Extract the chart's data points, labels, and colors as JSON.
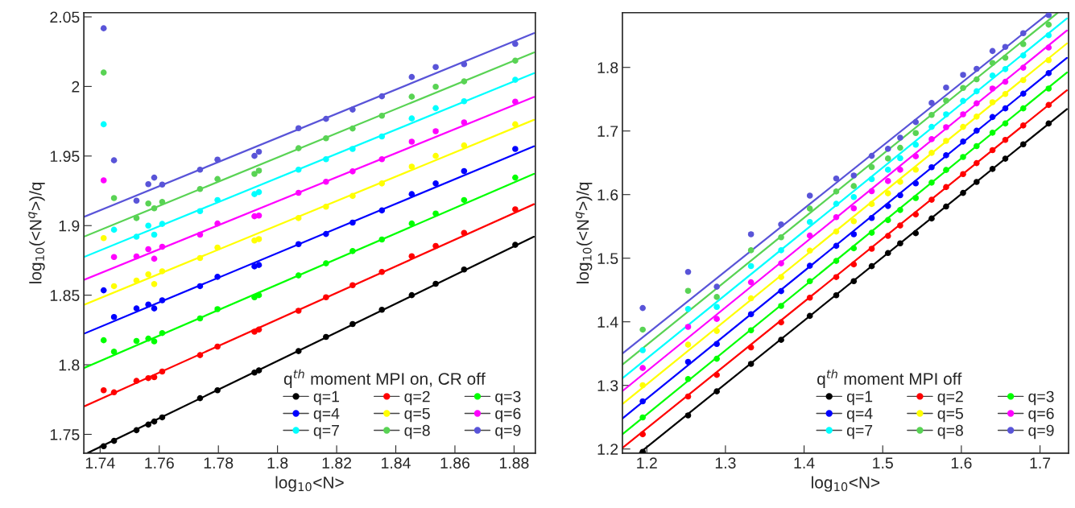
{
  "chart_data": [
    {
      "type": "scatter",
      "xlabel": "log$_{10}$<N>",
      "ylabel": "log$_{10}$(<N$^{q}$>)/q",
      "legend_title": "q$^{th}$ moment MPI on, CR off",
      "legend": "bottom right",
      "marker": "circle",
      "grid": false,
      "xlim": [
        1.7345,
        1.8872
      ],
      "ylim": [
        1.7365,
        2.053
      ],
      "xticks": [
        1.74,
        1.76,
        1.78,
        1.8,
        1.82,
        1.84,
        1.86,
        1.88
      ],
      "yticks": [
        1.75,
        1.8,
        1.85,
        1.9,
        1.95,
        2,
        2.05
      ],
      "x": [
        1.7412,
        1.7447,
        1.7523,
        1.7563,
        1.7583,
        1.761,
        1.7738,
        1.7797,
        1.7922,
        1.7937,
        1.8071,
        1.8164,
        1.8254,
        1.8353,
        1.8454,
        1.8535,
        1.8631,
        1.8804
      ],
      "series": [
        {
          "name": "q=1",
          "color": "#000000",
          "values": [
            1.7415,
            1.7453,
            1.753,
            1.757,
            1.7592,
            1.7622,
            1.776,
            1.7817,
            1.7944,
            1.7959,
            1.8098,
            1.82,
            1.8293,
            1.8395,
            1.85,
            1.8582,
            1.8685,
            1.8862
          ]
        },
        {
          "name": "q=2",
          "color": "#ff0000",
          "values": [
            1.7817,
            1.7802,
            1.7884,
            1.7904,
            1.7911,
            1.7951,
            1.8069,
            1.8131,
            1.8238,
            1.8253,
            1.8388,
            1.8485,
            1.8572,
            1.8667,
            1.878,
            1.8854,
            1.8948,
            1.9117
          ]
        },
        {
          "name": "q=3",
          "color": "#00ff00",
          "values": [
            1.8176,
            1.8094,
            1.8171,
            1.8188,
            1.8168,
            1.8228,
            1.8333,
            1.84,
            1.8485,
            1.85,
            1.8642,
            1.8729,
            1.8817,
            1.89,
            1.9015,
            1.9087,
            1.9184,
            1.9345
          ]
        },
        {
          "name": "q=4",
          "color": "#0000ff",
          "values": [
            1.8535,
            1.8343,
            1.8405,
            1.8433,
            1.8405,
            1.8463,
            1.8565,
            1.8632,
            1.8707,
            1.8717,
            1.8867,
            1.894,
            1.9022,
            1.9109,
            1.9226,
            1.9303,
            1.9392,
            1.9551
          ]
        },
        {
          "name": "q=5",
          "color": "#ffff00",
          "values": [
            1.891,
            1.8565,
            1.8605,
            1.865,
            1.858,
            1.8672,
            1.8767,
            1.8842,
            1.8893,
            1.8903,
            1.9054,
            1.9136,
            1.9213,
            1.9303,
            1.9424,
            1.9501,
            1.9576,
            1.9728
          ]
        },
        {
          "name": "q=6",
          "color": "#ff00ff",
          "values": [
            1.9325,
            1.8774,
            1.8779,
            1.8831,
            1.8762,
            1.8848,
            1.8935,
            1.9015,
            1.9067,
            1.9072,
            1.9236,
            1.9315,
            1.939,
            1.9477,
            1.9603,
            1.9678,
            1.9742,
            1.9891
          ]
        },
        {
          "name": "q=7",
          "color": "#00ffff",
          "values": [
            1.9728,
            1.897,
            1.892,
            1.9,
            1.8935,
            1.9012,
            1.9104,
            1.9184,
            1.9226,
            1.9241,
            1.9402,
            1.9477,
            1.9551,
            1.9641,
            1.977,
            1.9844,
            1.9894,
            2.0048
          ]
        },
        {
          "name": "q=8",
          "color": "#59d354",
          "values": [
            2.01,
            1.9198,
            1.9054,
            1.9159,
            1.9124,
            1.917,
            1.9263,
            1.9335,
            1.9372,
            1.9395,
            1.9556,
            1.9628,
            1.9698,
            1.979,
            1.9926,
            1.9998,
            2.0036,
            2.0185
          ]
        },
        {
          "name": "q=9",
          "color": "#5954d8",
          "values": [
            2.0418,
            1.9469,
            1.9179,
            1.9298,
            1.9345,
            1.9295,
            1.9402,
            1.9474,
            1.9501,
            1.9531,
            1.97,
            1.9767,
            1.9834,
            1.9929,
            2.0068,
            2.014,
            2.016,
            2.0306
          ]
        },
        {
          "type": "line",
          "marker": "none",
          "color": "#000000",
          "x": [
            1.7357,
            1.8867
          ],
          "values": [
            1.7365,
            1.892
          ]
        },
        {
          "type": "line",
          "marker": "none",
          "color": "#ff0000",
          "x": [
            1.7345,
            1.8867
          ],
          "values": [
            1.77,
            1.9154
          ]
        },
        {
          "type": "line",
          "marker": "none",
          "color": "#00ff00",
          "x": [
            1.7345,
            1.8867
          ],
          "values": [
            1.7976,
            1.9372
          ]
        },
        {
          "type": "line",
          "marker": "none",
          "color": "#0000ff",
          "x": [
            1.7345,
            1.8867
          ],
          "values": [
            1.8223,
            1.957
          ]
        },
        {
          "type": "line",
          "marker": "none",
          "color": "#ffff00",
          "x": [
            1.7345,
            1.8867
          ],
          "values": [
            1.843,
            1.976
          ]
        },
        {
          "type": "line",
          "marker": "none",
          "color": "#ff00ff",
          "x": [
            1.7345,
            1.8867
          ],
          "values": [
            1.861,
            1.9924
          ]
        },
        {
          "type": "line",
          "marker": "none",
          "color": "#00ffff",
          "x": [
            1.7345,
            1.8867
          ],
          "values": [
            1.8774,
            2.0095
          ]
        },
        {
          "type": "line",
          "marker": "none",
          "color": "#59d354",
          "x": [
            1.7345,
            1.8867
          ],
          "values": [
            1.892,
            2.0244
          ]
        },
        {
          "type": "line",
          "marker": "none",
          "color": "#5954d8",
          "x": [
            1.7345,
            1.8867
          ],
          "values": [
            1.9062,
            2.0383
          ]
        }
      ]
    },
    {
      "type": "scatter",
      "xlabel": "log$_{10}$<N>",
      "ylabel": "log$_{10}$(<N$^{q}$>)/q",
      "legend_title": "q$^{th}$ moment MPI off",
      "legend": "bottom right",
      "marker": "circle",
      "grid": false,
      "xlim": [
        1.169,
        1.7363
      ],
      "ylim": [
        1.1935,
        1.886
      ],
      "xticks": [
        1.2,
        1.3,
        1.4,
        1.5,
        1.6,
        1.7
      ],
      "yticks": [
        1.2,
        1.3,
        1.4,
        1.5,
        1.6,
        1.7,
        1.8
      ],
      "x": [
        1.1948,
        1.2525,
        1.289,
        1.3325,
        1.3708,
        1.4073,
        1.4409,
        1.4632,
        1.486,
        1.5067,
        1.5222,
        1.542,
        1.5622,
        1.5806,
        1.6022,
        1.6194,
        1.6396,
        1.6559,
        1.6787,
        1.711
      ],
      "series": [
        {
          "name": "q=1",
          "color": "#000000",
          "values": [
            1.1956,
            1.2528,
            1.2906,
            1.3338,
            1.3716,
            1.4093,
            1.4417,
            1.4638,
            1.4874,
            1.5081,
            1.5233,
            1.5393,
            1.5624,
            1.5812,
            1.6027,
            1.6199,
            1.6403,
            1.6565,
            1.679,
            1.7118
          ]
        },
        {
          "name": "q=2",
          "color": "#ff0000",
          "values": [
            1.2232,
            1.2825,
            1.3165,
            1.3597,
            1.3991,
            1.4379,
            1.4703,
            1.4903,
            1.5148,
            1.535,
            1.5514,
            1.5688,
            1.5919,
            1.6118,
            1.6323,
            1.6495,
            1.6699,
            1.686,
            1.7086,
            1.7409
          ]
        },
        {
          "name": "q=3",
          "color": "#00ff00",
          "values": [
            1.2496,
            1.31,
            1.3419,
            1.3867,
            1.425,
            1.4638,
            1.4957,
            1.5156,
            1.54,
            1.5599,
            1.5758,
            1.5946,
            1.6188,
            1.6387,
            1.6591,
            1.6763,
            1.6973,
            1.7118,
            1.7355,
            1.7667
          ]
        },
        {
          "name": "q=4",
          "color": "#0000ff",
          "values": [
            1.275,
            1.337,
            1.3651,
            1.412,
            1.4482,
            1.4881,
            1.5194,
            1.5376,
            1.5632,
            1.5821,
            1.599,
            1.6177,
            1.643,
            1.6618,
            1.6833,
            1.7005,
            1.722,
            1.7355,
            1.7586,
            1.7909
          ]
        },
        {
          "name": "q=5",
          "color": "#ffff00",
          "values": [
            1.3003,
            1.364,
            1.3856,
            1.4369,
            1.4703,
            1.5119,
            1.5419,
            1.5581,
            1.5852,
            1.602,
            1.62,
            1.6392,
            1.6656,
            1.6844,
            1.7065,
            1.7226,
            1.7452,
            1.7581,
            1.7801,
            1.8113
          ]
        },
        {
          "name": "q=6",
          "color": "#ff00ff",
          "values": [
            1.3273,
            1.3921,
            1.4045,
            1.4622,
            1.4919,
            1.5355,
            1.5645,
            1.5785,
            1.6054,
            1.6213,
            1.639,
            1.6602,
            1.6871,
            1.7059,
            1.7263,
            1.7435,
            1.7667,
            1.7774,
            1.7995,
            1.8312
          ]
        },
        {
          "name": "q=7",
          "color": "#00ffff",
          "values": [
            1.3554,
            1.4201,
            1.4234,
            1.4876,
            1.5124,
            1.557,
            1.5855,
            1.5962,
            1.6243,
            1.639,
            1.6572,
            1.6785,
            1.7065,
            1.7263,
            1.7473,
            1.7624,
            1.7871,
            1.7973,
            1.8188,
            1.8505
          ]
        },
        {
          "name": "q=8",
          "color": "#59d354",
          "values": [
            1.3877,
            1.4487,
            1.439,
            1.5124,
            1.5328,
            1.578,
            1.6048,
            1.6134,
            1.6433,
            1.6567,
            1.6736,
            1.6968,
            1.7253,
            1.7478,
            1.7677,
            1.7812,
            1.807,
            1.8151,
            1.8366,
            1.8672
          ]
        },
        {
          "name": "q=9",
          "color": "#5954d8",
          "values": [
            1.4217,
            1.4784,
            1.4552,
            1.5376,
            1.5532,
            1.5984,
            1.6253,
            1.6301,
            1.6609,
            1.6719,
            1.6895,
            1.714,
            1.7441,
            1.7683,
            1.7882,
            1.7978,
            1.8258,
            1.8323,
            1.8538,
            1.8823
          ]
        },
        {
          "type": "line",
          "marker": "none",
          "color": "#000000",
          "x": [
            1.1905,
            1.7342
          ],
          "values": [
            1.1935,
            1.7344
          ]
        },
        {
          "type": "line",
          "marker": "none",
          "color": "#ff0000",
          "x": [
            1.169,
            1.7342
          ],
          "values": [
            1.2016,
            1.764
          ]
        },
        {
          "type": "line",
          "marker": "none",
          "color": "#00ff00",
          "x": [
            1.169,
            1.7342
          ],
          "values": [
            1.2232,
            1.792
          ]
        },
        {
          "type": "line",
          "marker": "none",
          "color": "#0000ff",
          "x": [
            1.169,
            1.7342
          ],
          "values": [
            1.248,
            1.815
          ]
        },
        {
          "type": "line",
          "marker": "none",
          "color": "#ffff00",
          "x": [
            1.169,
            1.7342
          ],
          "values": [
            1.2706,
            1.8376
          ]
        },
        {
          "type": "line",
          "marker": "none",
          "color": "#ff00ff",
          "x": [
            1.169,
            1.7342
          ],
          "values": [
            1.2911,
            1.858
          ]
        },
        {
          "type": "line",
          "marker": "none",
          "color": "#00ffff",
          "x": [
            1.169,
            1.7342
          ],
          "values": [
            1.3111,
            1.8769
          ]
        },
        {
          "type": "line",
          "marker": "none",
          "color": "#59d354",
          "x": [
            1.169,
            1.7226
          ],
          "values": [
            1.3327,
            1.886
          ]
        },
        {
          "type": "line",
          "marker": "none",
          "color": "#5954d8",
          "x": [
            1.169,
            1.7118
          ],
          "values": [
            1.35,
            1.886
          ]
        }
      ]
    }
  ]
}
